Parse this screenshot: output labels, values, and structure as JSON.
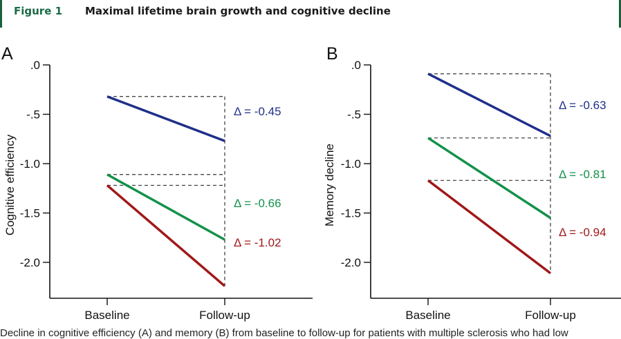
{
  "header": {
    "figure_label": "Figure 1",
    "title": "Maximal lifetime brain growth and cognitive decline"
  },
  "caption": "Decline in cognitive efficiency (A) and memory (B) from baseline to follow-up for patients with multiple sclerosis who had low",
  "colors": {
    "blue": "#1f2f8a",
    "green": "#13914a",
    "red": "#a01818",
    "axis": "#111111",
    "dash": "#333333"
  },
  "chart_data": [
    {
      "type": "line",
      "panel": "A",
      "title": "",
      "xlabel": "",
      "ylabel": "Cognitive efficiency",
      "categories": [
        "Baseline",
        "Follow-up"
      ],
      "ylim": [
        -2.3,
        0.0
      ],
      "yticks": [
        0.0,
        -0.5,
        -1.0,
        -1.5,
        -2.0
      ],
      "ytick_labels": [
        ".0",
        "-.5",
        "-1.0",
        "-1.5",
        "-2.0"
      ],
      "grid": false,
      "series": [
        {
          "name": "blue",
          "color": "blue",
          "values": [
            -0.32,
            -0.77
          ],
          "delta_label": "Δ = -0.45"
        },
        {
          "name": "green",
          "color": "green",
          "values": [
            -1.11,
            -1.77
          ],
          "delta_label": "Δ = -0.66"
        },
        {
          "name": "red",
          "color": "red",
          "values": [
            -1.22,
            -2.24
          ],
          "delta_label": "Δ = -1.02"
        }
      ]
    },
    {
      "type": "line",
      "panel": "B",
      "title": "",
      "xlabel": "",
      "ylabel": "Memory decline",
      "categories": [
        "Baseline",
        "Follow-up"
      ],
      "ylim": [
        -2.3,
        0.0
      ],
      "yticks": [
        0.0,
        -0.5,
        -1.0,
        -1.5,
        -2.0
      ],
      "ytick_labels": [
        ".0",
        "-.5",
        "-1.0",
        "-1.5",
        "-2.0"
      ],
      "grid": false,
      "series": [
        {
          "name": "blue",
          "color": "blue",
          "values": [
            -0.09,
            -0.72
          ],
          "delta_label": "Δ = -0.63"
        },
        {
          "name": "green",
          "color": "green",
          "values": [
            -0.74,
            -1.55
          ],
          "delta_label": "Δ = -0.81"
        },
        {
          "name": "red",
          "color": "red",
          "values": [
            -1.17,
            -2.11
          ],
          "delta_label": "Δ = -0.94"
        }
      ]
    }
  ]
}
